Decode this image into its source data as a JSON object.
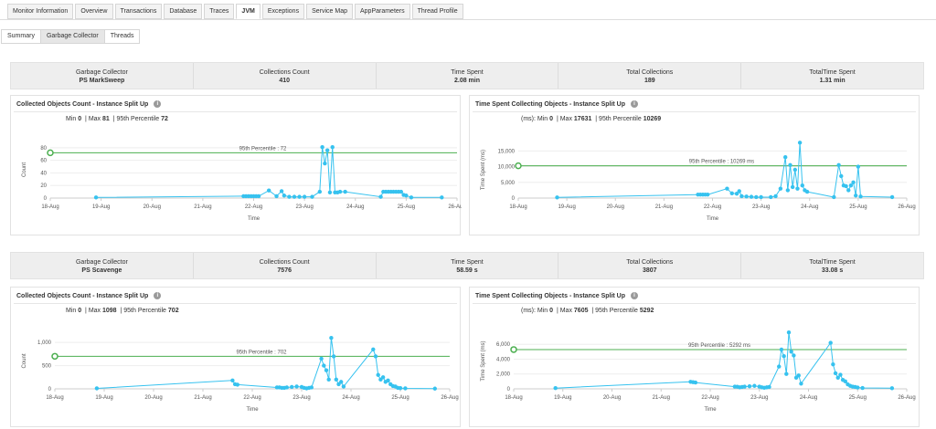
{
  "top_tabs": [
    "Monitor Information",
    "Overview",
    "Transactions",
    "Database",
    "Traces",
    "JVM",
    "Exceptions",
    "Service Map",
    "AppParameters",
    "Thread Profile"
  ],
  "active_top_tab": "JVM",
  "sub_tabs": [
    "Summary",
    "Garbage Collector",
    "Threads"
  ],
  "active_sub_tab": "Garbage Collector",
  "summary_labels": {
    "gc": "Garbage Collector",
    "count": "Collections Count",
    "time": "Time Spent",
    "total": "Total Collections",
    "total_time": "TotalTime Spent"
  },
  "card_titles": {
    "count": "Collected Objects Count - Instance Split Up",
    "time": "Time Spent Collecting Objects - Instance Split Up"
  },
  "stat_labels": {
    "min": "Min",
    "max": "Max",
    "p95": "95th Percentile",
    "unit_prefix": "(ms):",
    "sep": "|"
  },
  "axis": {
    "time": "Time",
    "count": "Count",
    "time_spent": "Time Spent (ms)"
  },
  "x_ticks": [
    "18-Aug",
    "19-Aug",
    "20-Aug",
    "21-Aug",
    "22-Aug",
    "23-Aug",
    "24-Aug",
    "25-Aug",
    "26-Aug"
  ],
  "collectors": [
    {
      "name": "PS MarkSweep",
      "collections_count": "410",
      "time_spent": "2.08 min",
      "total_collections": "189",
      "total_time_spent": "1.31 min",
      "count_chart": {
        "min": "0",
        "max": "81",
        "p95": "72",
        "p95_label": "95th Percentile : 72",
        "y_ticks": [
          "0",
          "20",
          "40",
          "60",
          "80"
        ]
      },
      "time_chart": {
        "min": "0",
        "max": "17631",
        "p95": "10269",
        "p95_label": "95th Percentile : 10269 ms",
        "y_ticks": [
          "0",
          "5,000",
          "10,000",
          "15,000"
        ]
      }
    },
    {
      "name": "PS Scavenge",
      "collections_count": "7576",
      "time_spent": "58.59 s",
      "total_collections": "3807",
      "total_time_spent": "33.08 s",
      "count_chart": {
        "min": "0",
        "max": "1098",
        "p95": "702",
        "p95_label": "95th Percentile : 702",
        "y_ticks": [
          "0",
          "500",
          "1,000"
        ]
      },
      "time_chart": {
        "min": "0",
        "max": "7605",
        "p95": "5292",
        "p95_label": "95th Percentile : 5292 ms",
        "y_ticks": [
          "0",
          "2,000",
          "4,000",
          "6,000"
        ]
      }
    }
  ],
  "chart_data": [
    {
      "type": "line",
      "title": "Collected Objects Count - Instance Split Up",
      "xlabel": "Time",
      "ylabel": "Count",
      "ylim": [
        0,
        90
      ],
      "y_ticks": [
        0,
        20,
        40,
        60,
        80
      ],
      "reference_line": 72,
      "x_domain": [
        "18-Aug",
        "26-Aug"
      ],
      "series": [
        {
          "x": [
            18.9,
            21.8,
            21.85,
            21.9,
            21.95,
            22.0,
            22.05,
            22.1,
            22.3,
            22.45,
            22.55,
            22.6,
            22.7,
            22.8,
            22.9,
            23.0,
            23.15,
            23.3,
            23.35,
            23.4,
            23.45,
            23.5,
            23.55,
            23.6,
            23.65,
            23.7,
            23.8,
            24.5,
            24.55,
            24.6,
            24.65,
            24.7,
            24.75,
            24.8,
            24.85,
            24.9,
            24.95,
            25.0,
            25.1,
            25.7
          ],
          "y": [
            1,
            3,
            3,
            3,
            3,
            3,
            3,
            3,
            12,
            3,
            11,
            4,
            2,
            2,
            2,
            2,
            2,
            10,
            81,
            55,
            76,
            9,
            81,
            9,
            9,
            10,
            10,
            2,
            10,
            10,
            10,
            10,
            10,
            10,
            10,
            10,
            5,
            4,
            1,
            1
          ]
        }
      ]
    },
    {
      "type": "line",
      "title": "Time Spent Collecting Objects - Instance Split Up",
      "xlabel": "Time",
      "ylabel": "Time Spent (ms)",
      "ylim": [
        0,
        18000
      ],
      "y_ticks": [
        0,
        5000,
        10000,
        15000
      ],
      "reference_line": 10269,
      "x_domain": [
        "18-Aug",
        "26-Aug"
      ],
      "series": [
        {
          "x": [
            18.8,
            21.7,
            21.75,
            21.8,
            21.85,
            21.9,
            22.3,
            22.4,
            22.5,
            22.55,
            22.6,
            22.7,
            22.8,
            22.9,
            23.0,
            23.2,
            23.3,
            23.4,
            23.5,
            23.55,
            23.6,
            23.65,
            23.7,
            23.75,
            23.8,
            23.85,
            23.9,
            23.95,
            24.5,
            24.6,
            24.65,
            24.7,
            24.75,
            24.8,
            24.85,
            24.9,
            24.95,
            25.0,
            25.05,
            25.7
          ],
          "y": [
            200,
            1100,
            1100,
            1100,
            1100,
            1100,
            3000,
            1500,
            1400,
            2200,
            600,
            500,
            400,
            300,
            300,
            300,
            600,
            3000,
            13000,
            2500,
            10500,
            3500,
            9000,
            3000,
            17631,
            4000,
            2500,
            2000,
            300,
            10500,
            7000,
            4000,
            3800,
            2500,
            4000,
            5000,
            800,
            10000,
            500,
            300
          ]
        }
      ]
    },
    {
      "type": "line",
      "title": "Collected Objects Count - Instance Split Up",
      "xlabel": "Time",
      "ylabel": "Count",
      "ylim": [
        0,
        1200
      ],
      "y_ticks": [
        0,
        500,
        1000
      ],
      "reference_line": 702,
      "x_domain": [
        "18-Aug",
        "26-Aug"
      ],
      "series": [
        {
          "x": [
            18.85,
            21.6,
            21.65,
            21.7,
            22.5,
            22.55,
            22.6,
            22.65,
            22.7,
            22.8,
            22.9,
            23.0,
            23.05,
            23.1,
            23.15,
            23.2,
            23.4,
            23.45,
            23.5,
            23.55,
            23.6,
            23.65,
            23.7,
            23.75,
            23.8,
            23.85,
            24.45,
            24.5,
            24.55,
            24.6,
            24.65,
            24.7,
            24.75,
            24.8,
            24.85,
            24.9,
            24.95,
            25.0,
            25.1,
            25.7
          ],
          "y": [
            10,
            180,
            100,
            90,
            30,
            30,
            20,
            20,
            30,
            40,
            50,
            40,
            20,
            10,
            20,
            30,
            650,
            500,
            400,
            200,
            1098,
            700,
            200,
            100,
            150,
            50,
            850,
            700,
            300,
            200,
            250,
            150,
            180,
            100,
            60,
            50,
            20,
            15,
            10,
            5
          ]
        }
      ]
    },
    {
      "type": "line",
      "title": "Time Spent Collecting Objects - Instance Split Up",
      "xlabel": "Time",
      "ylabel": "Time Spent (ms)",
      "ylim": [
        0,
        7500
      ],
      "y_ticks": [
        0,
        2000,
        4000,
        6000
      ],
      "reference_line": 5292,
      "x_domain": [
        "18-Aug",
        "26-Aug"
      ],
      "series": [
        {
          "x": [
            18.85,
            21.6,
            21.65,
            21.7,
            22.5,
            22.55,
            22.6,
            22.65,
            22.7,
            22.8,
            22.9,
            23.0,
            23.05,
            23.1,
            23.15,
            23.2,
            23.4,
            23.45,
            23.5,
            23.55,
            23.6,
            23.65,
            23.7,
            23.75,
            23.8,
            23.85,
            24.45,
            24.5,
            24.55,
            24.6,
            24.65,
            24.7,
            24.75,
            24.8,
            24.85,
            24.9,
            24.95,
            25.0,
            25.1,
            25.7
          ],
          "y": [
            100,
            950,
            900,
            850,
            300,
            280,
            200,
            250,
            300,
            350,
            400,
            300,
            200,
            150,
            200,
            250,
            3000,
            5300,
            4400,
            2000,
            7605,
            5000,
            4500,
            1500,
            1800,
            700,
            6200,
            3300,
            2100,
            1500,
            1900,
            1200,
            1000,
            600,
            400,
            300,
            250,
            180,
            120,
            80
          ]
        }
      ]
    }
  ],
  "colors": {
    "line": "#36c2ef",
    "reference": "#4caf50",
    "grid": "#eeeeee"
  }
}
